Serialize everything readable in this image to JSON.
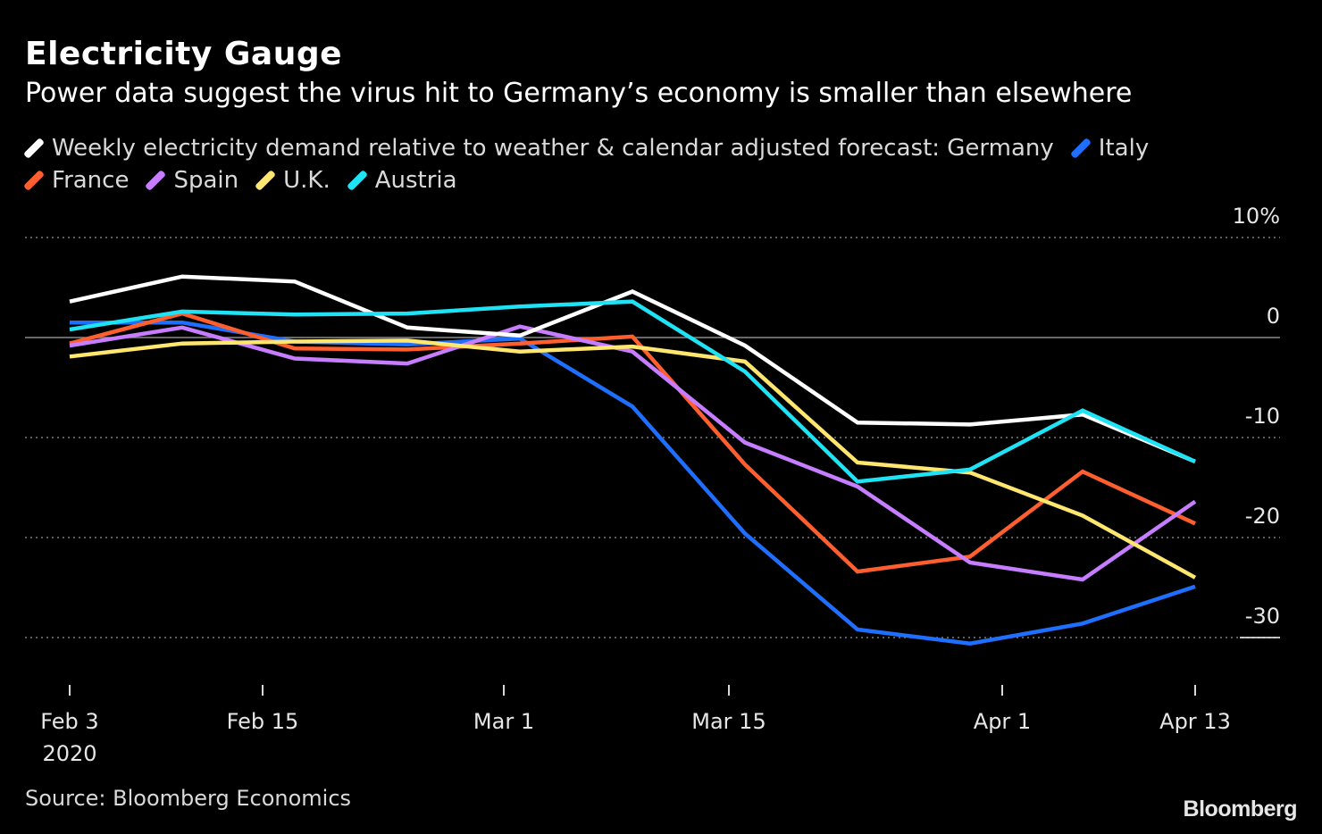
{
  "header": {
    "title": "Electricity Gauge",
    "subtitle": "Power data suggest the virus hit to Germany’s economy is smaller than elsewhere"
  },
  "legend": {
    "items": [
      {
        "label": "Weekly electricity demand relative to weather & calendar adjusted forecast: Germany",
        "color": "#ffffff"
      },
      {
        "label": "Italy",
        "color": "#1f6fff"
      },
      {
        "label": "France",
        "color": "#ff5f2e"
      },
      {
        "label": "Spain",
        "color": "#c77dff"
      },
      {
        "label": "U.K.",
        "color": "#ffe66e"
      },
      {
        "label": "Austria",
        "color": "#1fe3f5"
      }
    ]
  },
  "footer": {
    "source": "Source: Bloomberg Economics",
    "logo": "Bloomberg"
  },
  "chart_data": {
    "type": "line",
    "title": "Electricity Gauge",
    "subtitle": "Power data suggest the virus hit to Germany’s economy is smaller than elsewhere",
    "x": [
      "2020-02-03",
      "2020-02-10",
      "2020-02-17",
      "2020-02-24",
      "2020-03-02",
      "2020-03-09",
      "2020-03-16",
      "2020-03-23",
      "2020-03-30",
      "2020-04-06",
      "2020-04-13"
    ],
    "x_tick_labels": [
      {
        "date": "2020-02-03",
        "label": "Feb 3",
        "sublabel": "2020"
      },
      {
        "date": "2020-02-15",
        "label": "Feb 15"
      },
      {
        "date": "2020-03-01",
        "label": "Mar 1"
      },
      {
        "date": "2020-03-15",
        "label": "Mar 15"
      },
      {
        "date": "2020-04-01",
        "label": "Apr 1"
      },
      {
        "date": "2020-04-13",
        "label": "Apr 13"
      }
    ],
    "y_ticks": [
      {
        "value": 10,
        "label": "10%"
      },
      {
        "value": 0,
        "label": "0"
      },
      {
        "value": -10,
        "label": "-10"
      },
      {
        "value": -20,
        "label": "-20"
      },
      {
        "value": -30,
        "label": "-30"
      }
    ],
    "ylim": [
      -35,
      10
    ],
    "grid": true,
    "legend_position": "top",
    "series": [
      {
        "name": "Germany",
        "color": "#ffffff",
        "values": [
          3.6,
          6.1,
          5.6,
          1.0,
          0.2,
          4.6,
          -0.8,
          -8.5,
          -8.7,
          -7.7,
          -12.4
        ]
      },
      {
        "name": "Italy",
        "color": "#1f6fff",
        "values": [
          1.5,
          1.5,
          -0.4,
          -0.7,
          -0.1,
          -6.9,
          -19.6,
          -29.2,
          -30.6,
          -28.6,
          -24.9
        ]
      },
      {
        "name": "France",
        "color": "#ff5f2e",
        "values": [
          -0.6,
          2.4,
          -1.1,
          -1.2,
          -0.6,
          0.1,
          -12.7,
          -23.4,
          -21.9,
          -13.4,
          -18.6
        ]
      },
      {
        "name": "Spain",
        "color": "#c77dff",
        "values": [
          -0.8,
          1.0,
          -2.1,
          -2.6,
          1.1,
          -1.4,
          -10.5,
          -14.9,
          -22.5,
          -24.2,
          -16.4
        ]
      },
      {
        "name": "U.K.",
        "color": "#ffe66e",
        "values": [
          -1.9,
          -0.6,
          -0.4,
          -0.3,
          -1.4,
          -0.9,
          -2.4,
          -12.5,
          -13.5,
          -17.8,
          -24.0
        ]
      },
      {
        "name": "Austria",
        "color": "#1fe3f5",
        "values": [
          0.8,
          2.6,
          2.3,
          2.4,
          3.1,
          3.6,
          -3.4,
          -14.4,
          -13.2,
          -7.3,
          -12.4
        ]
      }
    ]
  }
}
